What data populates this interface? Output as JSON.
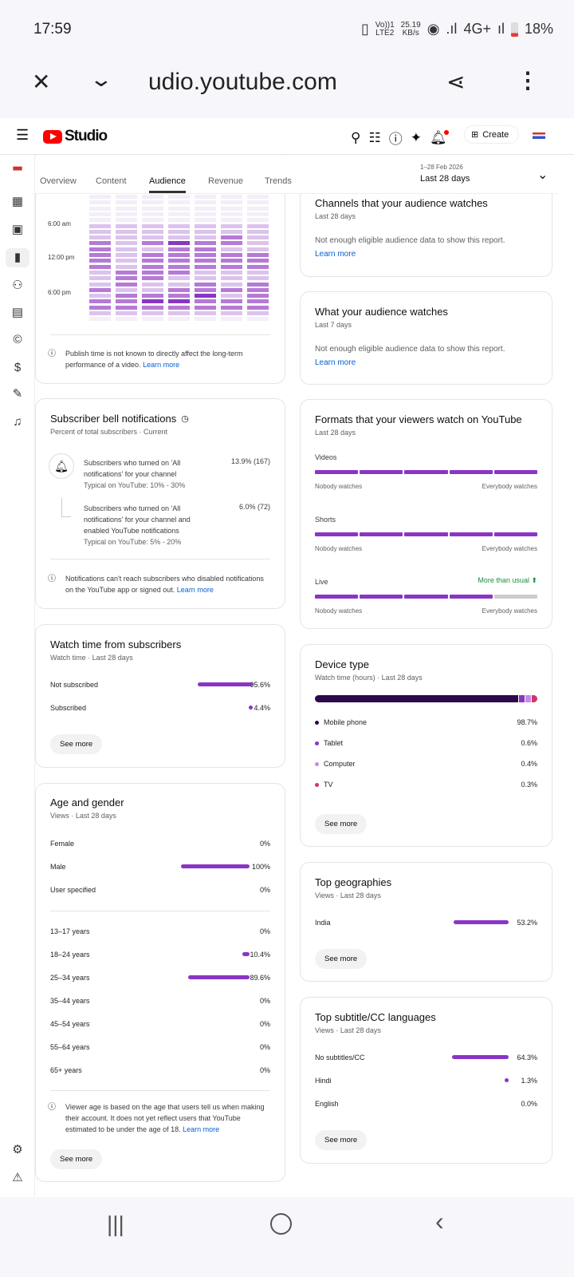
{
  "status": {
    "time": "17:59",
    "volte": "Vo))1",
    "lte": "LTE2",
    "speed": "25.19",
    "speed_unit": "KB/s",
    "network": "4G+",
    "battery": "18%"
  },
  "browser": {
    "url": "udio.youtube.com"
  },
  "header": {
    "brand": "Studio",
    "create_label": "Create"
  },
  "tabs": [
    {
      "label": "Overview"
    },
    {
      "label": "Content"
    },
    {
      "label": "Audience"
    },
    {
      "label": "Revenue"
    },
    {
      "label": "Trends"
    }
  ],
  "date": {
    "range": "1–28 Feb 2026",
    "label": "Last 28 days"
  },
  "heatmap": {
    "time_labels": [
      "6:00 am",
      "12:00 pm",
      "6:00 pm"
    ],
    "levels": [
      [
        0,
        0,
        0,
        0,
        0,
        1,
        1,
        1,
        3,
        3,
        3,
        3,
        3,
        1,
        1,
        1,
        3,
        1,
        3,
        3,
        1,
        0
      ],
      [
        0,
        0,
        0,
        0,
        0,
        1,
        1,
        1,
        1,
        1,
        1,
        1,
        1,
        3,
        3,
        3,
        1,
        3,
        3,
        3,
        1,
        0
      ],
      [
        0,
        0,
        0,
        0,
        0,
        1,
        1,
        1,
        3,
        1,
        3,
        3,
        3,
        3,
        3,
        1,
        1,
        3,
        4,
        3,
        1,
        0
      ],
      [
        0,
        0,
        0,
        0,
        0,
        1,
        1,
        1,
        4,
        3,
        3,
        3,
        3,
        3,
        1,
        1,
        3,
        3,
        4,
        3,
        1,
        0
      ],
      [
        0,
        0,
        0,
        0,
        0,
        1,
        1,
        1,
        3,
        3,
        3,
        3,
        3,
        1,
        1,
        3,
        3,
        4,
        3,
        3,
        1,
        0
      ],
      [
        0,
        0,
        0,
        0,
        0,
        1,
        1,
        3,
        3,
        1,
        3,
        3,
        3,
        1,
        1,
        1,
        3,
        1,
        3,
        3,
        1,
        0
      ],
      [
        0,
        0,
        0,
        0,
        0,
        1,
        1,
        1,
        1,
        1,
        3,
        3,
        3,
        1,
        1,
        3,
        3,
        3,
        3,
        3,
        1,
        0
      ]
    ],
    "note": "Publish time is not known to directly affect the long-term performance of a video.",
    "learn_more": "Learn more"
  },
  "bell": {
    "title": "Subscriber bell notifications",
    "subtitle": "Percent of total subscribers · Current",
    "items": [
      {
        "text": "Subscribers who turned on 'All notifications' for your channel",
        "typical": "Typical on YouTube: 10% - 30%",
        "value": "13.9% (167)"
      },
      {
        "text": "Subscribers who turned on 'All notifications' for your channel and enabled YouTube notifications",
        "typical": "Typical on YouTube: 5% - 20%",
        "value": "6.0% (72)"
      }
    ],
    "note": "Notifications can't reach subscribers who disabled notifications on the YouTube app or signed out.",
    "learn_more": "Learn more"
  },
  "watch": {
    "title": "Watch time from subscribers",
    "subtitle": "Watch time · Last 28 days",
    "rows": [
      {
        "label": "Not subscribed",
        "value": "95.6%",
        "pct": 95.6
      },
      {
        "label": "Subscribed",
        "value": "4.4%",
        "pct": 4.4
      }
    ],
    "see_more": "See more"
  },
  "age": {
    "title": "Age and gender",
    "subtitle": "Views · Last 28 days",
    "gender": [
      {
        "label": "Female",
        "value": "0%",
        "pct": 0
      },
      {
        "label": "Male",
        "value": "100%",
        "pct": 100
      },
      {
        "label": "User specified",
        "value": "0%",
        "pct": 0
      }
    ],
    "ages": [
      {
        "label": "13–17 years",
        "value": "0%",
        "pct": 0
      },
      {
        "label": "18–24 years",
        "value": "10.4%",
        "pct": 10.4
      },
      {
        "label": "25–34 years",
        "value": "89.6%",
        "pct": 89.6
      },
      {
        "label": "35–44 years",
        "value": "0%",
        "pct": 0
      },
      {
        "label": "45–54 years",
        "value": "0%",
        "pct": 0
      },
      {
        "label": "55–64 years",
        "value": "0%",
        "pct": 0
      },
      {
        "label": "65+ years",
        "value": "0%",
        "pct": 0
      }
    ],
    "note": "Viewer age is based on the age that users tell us when making their account. It does not yet reflect users that YouTube estimated to be under the age of 18.",
    "learn_more": "Learn more",
    "see_more": "See more"
  },
  "channels": {
    "title": "Channels that your audience watches",
    "subtitle": "Last 28 days",
    "text": "Not enough eligible audience data to show this report.",
    "learn_more": "Learn more"
  },
  "watches": {
    "title": "What your audience watches",
    "subtitle": "Last 7 days",
    "text": "Not enough eligible audience data to show this report.",
    "learn_more": "Learn more"
  },
  "formats": {
    "title": "Formats that your viewers watch on YouTube",
    "subtitle": "Last 28 days",
    "min": "Nobody watches",
    "max": "Everybody watches",
    "items": [
      {
        "label": "Videos",
        "filled": 5
      },
      {
        "label": "Shorts",
        "filled": 5
      },
      {
        "label": "Live",
        "filled": 4,
        "badge": "More than usual"
      }
    ]
  },
  "device": {
    "title": "Device type",
    "subtitle": "Watch time (hours) · Last 28 days",
    "items": [
      {
        "label": "Mobile phone",
        "value": "98.7%",
        "pct": 98.7,
        "color": "#2d0a4a"
      },
      {
        "label": "Tablet",
        "value": "0.6%",
        "pct": 0.6,
        "color": "#8a35c4"
      },
      {
        "label": "Computer",
        "value": "0.4%",
        "pct": 0.4,
        "color": "#c58ce8"
      },
      {
        "label": "TV",
        "value": "0.3%",
        "pct": 0.3,
        "color": "#d6336c"
      }
    ],
    "see_more": "See more"
  },
  "geo": {
    "title": "Top geographies",
    "subtitle": "Views · Last 28 days",
    "rows": [
      {
        "label": "India",
        "value": "53.2%",
        "pct": 53.2
      }
    ],
    "see_more": "See more"
  },
  "subs": {
    "title": "Top subtitle/CC languages",
    "subtitle": "Views · Last 28 days",
    "rows": [
      {
        "label": "No subtitles/CC",
        "value": "64.3%",
        "pct": 64.3
      },
      {
        "label": "Hindi",
        "value": "1.3%",
        "pct": 1.3
      },
      {
        "label": "English",
        "value": "0.0%",
        "pct": 0
      }
    ],
    "see_more": "See more"
  }
}
